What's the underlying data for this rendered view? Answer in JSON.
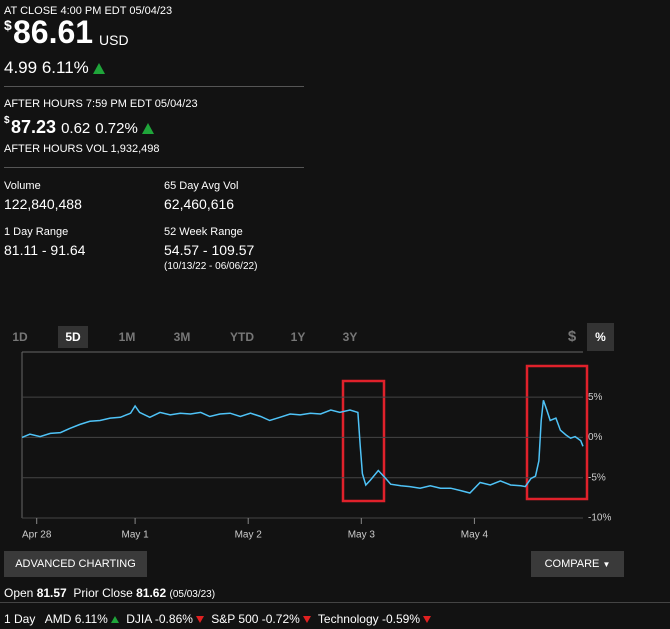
{
  "quote": {
    "close_label": "AT CLOSE 4:00 PM EDT 05/04/23",
    "currency_symbol": "$",
    "price": "86.61",
    "currency": "USD",
    "change": "4.99",
    "change_pct": "6.11%",
    "after_hours_label": "AFTER HOURS 7:59 PM EDT 05/04/23",
    "after_hours_price": "87.23",
    "after_hours_change": "0.62",
    "after_hours_change_pct": "0.72%",
    "after_hours_volume": "AFTER HOURS VOL 1,932,498",
    "stats": [
      {
        "label": "Volume",
        "value": "122,840,488"
      },
      {
        "label": "65 Day Avg Vol",
        "value": "62,460,616"
      },
      {
        "label": "1 Day Range",
        "value": "81.11 - 91.64"
      },
      {
        "label": "52 Week Range",
        "value": "54.57 - 109.57",
        "note": "(10/13/22 - 06/06/22)"
      }
    ]
  },
  "range_tabs": [
    "1D",
    "5D",
    "1M",
    "3M",
    "YTD",
    "1Y",
    "3Y"
  ],
  "mode_tabs": [
    "$",
    "%"
  ],
  "buttons": {
    "advanced": "ADVANCED CHARTING",
    "compare": "COMPARE"
  },
  "open": {
    "label": "Open",
    "value": "81.57"
  },
  "prior_close": {
    "label": "Prior Close",
    "value": "81.62",
    "date": "(05/03/23)"
  },
  "day_label": "1 Day",
  "ticker_strip": [
    {
      "name": "AMD",
      "change": "6.11%"
    },
    {
      "name": "DJIA",
      "change": "-0.86%"
    },
    {
      "name": "S&P 500",
      "change": "-0.72%"
    },
    {
      "name": "Technology",
      "change": "-0.59%"
    }
  ],
  "chart_data": {
    "type": "line",
    "color": "#4fc3f7",
    "x": [
      0,
      0.07,
      0.16,
      0.25,
      0.34,
      0.42,
      0.51,
      0.6,
      0.69,
      0.78,
      0.87,
      0.96,
      1.0,
      1.04,
      1.13,
      1.22,
      1.31,
      1.4,
      1.49,
      1.58,
      1.66,
      1.75,
      1.84,
      1.93,
      2.02,
      2.11,
      2.19,
      2.28,
      2.37,
      2.46,
      2.55,
      2.64,
      2.73,
      2.81,
      2.9,
      2.97,
      2.99,
      3.01,
      3.04,
      3.08,
      3.15,
      3.21,
      3.26,
      3.35,
      3.43,
      3.52,
      3.61,
      3.7,
      3.79,
      3.88,
      3.96,
      4.05,
      4.14,
      4.23,
      4.32,
      4.41,
      4.45,
      4.5,
      4.54,
      4.57,
      4.59,
      4.61,
      4.64,
      4.67,
      4.72,
      4.76,
      4.81,
      4.85,
      4.89,
      4.94,
      4.96
    ],
    "values": [
      0,
      0.4,
      0.1,
      0.5,
      0.6,
      1.1,
      1.6,
      2.0,
      2.1,
      2.4,
      2.5,
      3.0,
      3.9,
      3.1,
      2.5,
      3.1,
      2.8,
      3.0,
      2.9,
      3.1,
      2.6,
      2.9,
      3.0,
      2.6,
      3.0,
      2.6,
      2.1,
      2.5,
      2.9,
      2.8,
      3.0,
      2.9,
      3.4,
      3.1,
      3.4,
      3.1,
      -1.0,
      -4.5,
      -5.9,
      -5.3,
      -4.1,
      -5.0,
      -5.8,
      -6.0,
      -6.1,
      -6.3,
      -6.0,
      -6.3,
      -6.3,
      -6.6,
      -6.9,
      -5.6,
      -5.9,
      -5.4,
      -5.9,
      -6.0,
      -6.1,
      -5.1,
      -4.8,
      -2.9,
      2.1,
      4.6,
      3.4,
      2.1,
      2.4,
      0.9,
      0.3,
      -0.1,
      0.1,
      -0.4,
      -1.1
    ],
    "xlim": [
      0,
      4.96
    ],
    "xticks": [
      {
        "value": 0.13,
        "label": "Apr 28"
      },
      {
        "value": 1,
        "label": "May 1"
      },
      {
        "value": 2,
        "label": "May 2"
      },
      {
        "value": 3,
        "label": "May 3"
      },
      {
        "value": 4,
        "label": "May 4"
      }
    ],
    "ylim": [
      -10,
      10.6
    ],
    "yticks": [
      {
        "value": 5,
        "label": "5%"
      },
      {
        "value": 0,
        "label": "0%"
      },
      {
        "value": -5,
        "label": "-5%"
      },
      {
        "value": -10,
        "label": "-10%"
      }
    ],
    "grid": true
  }
}
